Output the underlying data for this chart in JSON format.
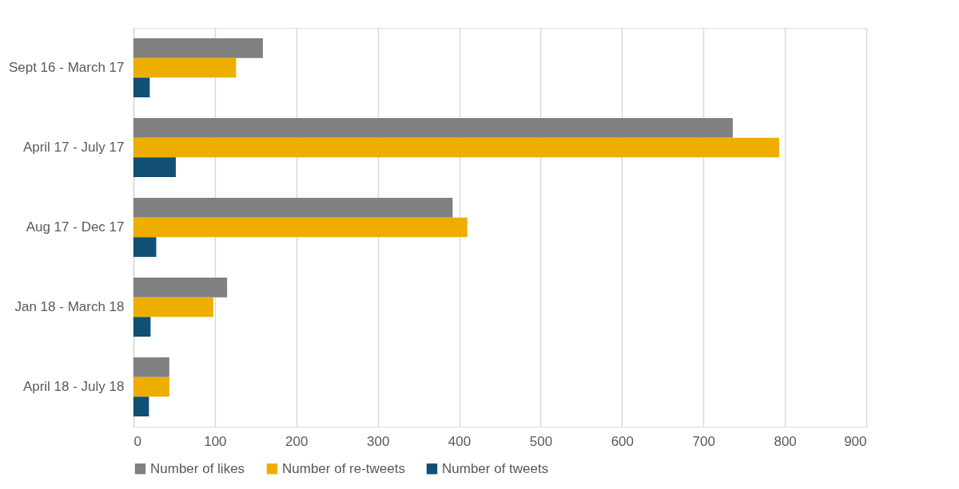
{
  "chart_data": {
    "type": "bar",
    "orientation": "horizontal",
    "categories": [
      "Sept 16 - March 17",
      "April 17 - July 17",
      "Aug 17 - Dec 17",
      "Jan 18 - March 18",
      "April 18 - July 18"
    ],
    "series": [
      {
        "name": "Number of likes",
        "color": "#808080",
        "values": [
          159,
          736,
          392,
          115,
          44
        ]
      },
      {
        "name": "Number of re-tweets",
        "color": "#edae00",
        "values": [
          126,
          793,
          410,
          98,
          44
        ]
      },
      {
        "name": "Number of tweets",
        "color": "#124f74",
        "values": [
          20,
          52,
          28,
          21,
          19
        ]
      }
    ],
    "xlim": [
      0,
      900
    ],
    "xticks": [
      0,
      100,
      200,
      300,
      400,
      500,
      600,
      700,
      800,
      900
    ],
    "grid": "x",
    "legend": "bottom"
  }
}
